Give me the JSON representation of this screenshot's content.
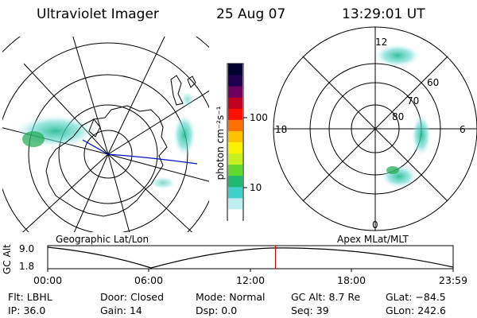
{
  "header": {
    "title": "Ultraviolet Imager",
    "date": "25 Aug 07",
    "time": "13:29:01 UT"
  },
  "left_panel": {
    "caption": "Geographic Lat/Lon"
  },
  "right_panel": {
    "caption": "Apex MLat/MLT",
    "mlt_labels": {
      "top": "12",
      "bottom": "0",
      "left": "18",
      "right": "6"
    },
    "lat_labels": [
      "60",
      "70",
      "80"
    ]
  },
  "colorbar": {
    "unit_label": "photon cm⁻²s⁻¹",
    "ticks": [
      "100",
      "10"
    ],
    "colors": [
      "#ffffff",
      "#bfeef0",
      "#40d0c8",
      "#20b870",
      "#60d830",
      "#c8f020",
      "#f8f000",
      "#ffc000",
      "#ff7000",
      "#ff1000",
      "#c00020",
      "#700060",
      "#200050",
      "#000030"
    ]
  },
  "altitude_plot": {
    "ylabel": "GC Alt",
    "y_ticks": [
      "9.0",
      "1.8"
    ],
    "x_ticks": [
      "00:00",
      "06:00",
      "12:00",
      "18:00",
      "23:59"
    ],
    "current_time_hours": 13.48,
    "marker_color": "#e00000"
  },
  "status": {
    "row1": [
      {
        "label": "Flt:",
        "value": "LBHL"
      },
      {
        "label": "Door:",
        "value": "Closed"
      },
      {
        "label": "Mode:",
        "value": "Normal"
      },
      {
        "label": "GC Alt:",
        "value": "8.7 Re"
      },
      {
        "label": "GLat:",
        "value": "−84.5"
      }
    ],
    "row2": [
      {
        "label": "IP:",
        "value": "36.0"
      },
      {
        "label": "Gain:",
        "value": "14"
      },
      {
        "label": "Dsp:",
        "value": "0.0"
      },
      {
        "label": "Seq:",
        "value": "39"
      },
      {
        "label": "GLon:",
        "value": "242.6"
      }
    ]
  }
}
